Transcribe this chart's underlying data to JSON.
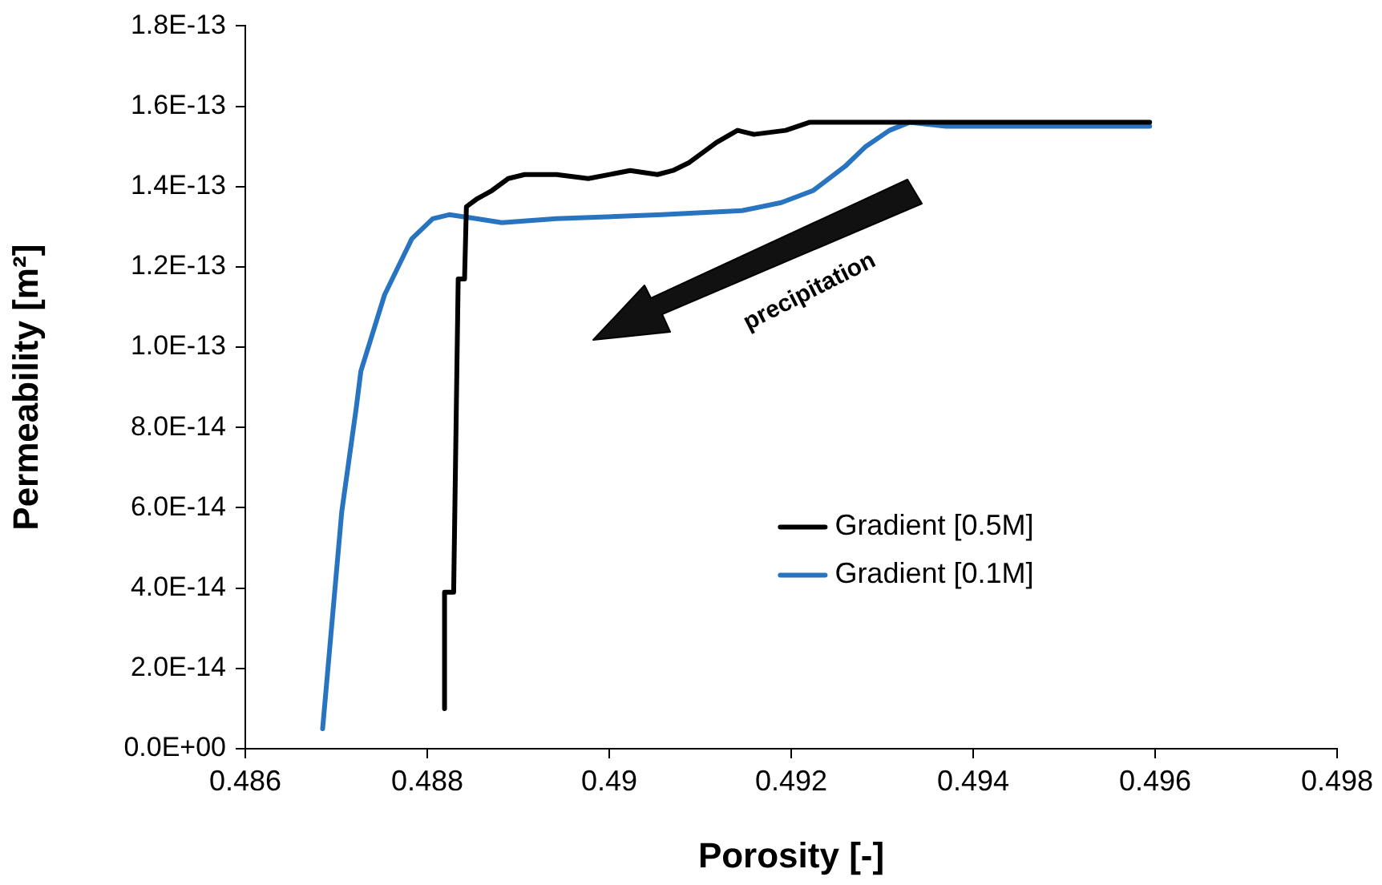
{
  "chart_data": {
    "type": "line",
    "xlabel": "Porosity [-]",
    "ylabel": "Permeability [m²]",
    "xlim": [
      0.486,
      0.498
    ],
    "xticks": [
      0.486,
      0.488,
      0.49,
      0.492,
      0.494,
      0.496,
      0.498
    ],
    "ylim": [
      0,
      1.8e-13
    ],
    "yticks": [
      {
        "value": 0,
        "label": "0.0E+00"
      },
      {
        "value": 2e-14,
        "label": "2.0E-14"
      },
      {
        "value": 4e-14,
        "label": "4.0E-14"
      },
      {
        "value": 6e-14,
        "label": "6.0E-14"
      },
      {
        "value": 8e-14,
        "label": "8.0E-14"
      },
      {
        "value": 1e-13,
        "label": "1.0E-13"
      },
      {
        "value": 1.2e-13,
        "label": "1.2E-13"
      },
      {
        "value": 1.4e-13,
        "label": "1.4E-13"
      },
      {
        "value": 1.6e-13,
        "label": "1.6E-13"
      },
      {
        "value": 1.8e-13,
        "label": "1.8E-13"
      }
    ],
    "series": [
      {
        "name": "Gradient [0.5M]",
        "color": "#000000",
        "x": [
          0.48819,
          0.48819,
          0.48829,
          0.48834,
          0.48841,
          0.48843,
          0.48855,
          0.48871,
          0.48889,
          0.48907,
          0.48942,
          0.48977,
          0.49023,
          0.49053,
          0.4907,
          0.49088,
          0.49106,
          0.49118,
          0.49141,
          0.49159,
          0.49194,
          0.4922,
          0.4941,
          0.49594
        ],
        "values": [
          1e-14,
          3.9e-14,
          3.9e-14,
          1.17e-13,
          1.17e-13,
          1.35e-13,
          1.37e-13,
          1.39e-13,
          1.42e-13,
          1.43e-13,
          1.43e-13,
          1.42e-13,
          1.44e-13,
          1.43e-13,
          1.44e-13,
          1.46e-13,
          1.49e-13,
          1.51e-13,
          1.54e-13,
          1.53e-13,
          1.54e-13,
          1.56e-13,
          1.56e-13,
          1.56e-13
        ]
      },
      {
        "name": "Gradient [0.1M]",
        "color": "#2874c0",
        "x": [
          0.48685,
          0.48706,
          0.48722,
          0.48727,
          0.48753,
          0.48783,
          0.48806,
          0.48824,
          0.48854,
          0.48882,
          0.48942,
          0.49058,
          0.49146,
          0.49189,
          0.49224,
          0.49259,
          0.49282,
          0.49308,
          0.4933,
          0.4937,
          0.49423,
          0.49594
        ],
        "values": [
          5e-15,
          5.9e-14,
          8.5e-14,
          9.4e-14,
          1.13e-13,
          1.27e-13,
          1.32e-13,
          1.33e-13,
          1.32e-13,
          1.31e-13,
          1.32e-13,
          1.33e-13,
          1.34e-13,
          1.36e-13,
          1.39e-13,
          1.45e-13,
          1.5e-13,
          1.54e-13,
          1.56e-13,
          1.55e-13,
          1.55e-13,
          1.55e-13
        ]
      }
    ],
    "annotations": [
      "precipitation"
    ],
    "grid": false,
    "legend": "right",
    "marker": "none",
    "line_style": "solid"
  }
}
